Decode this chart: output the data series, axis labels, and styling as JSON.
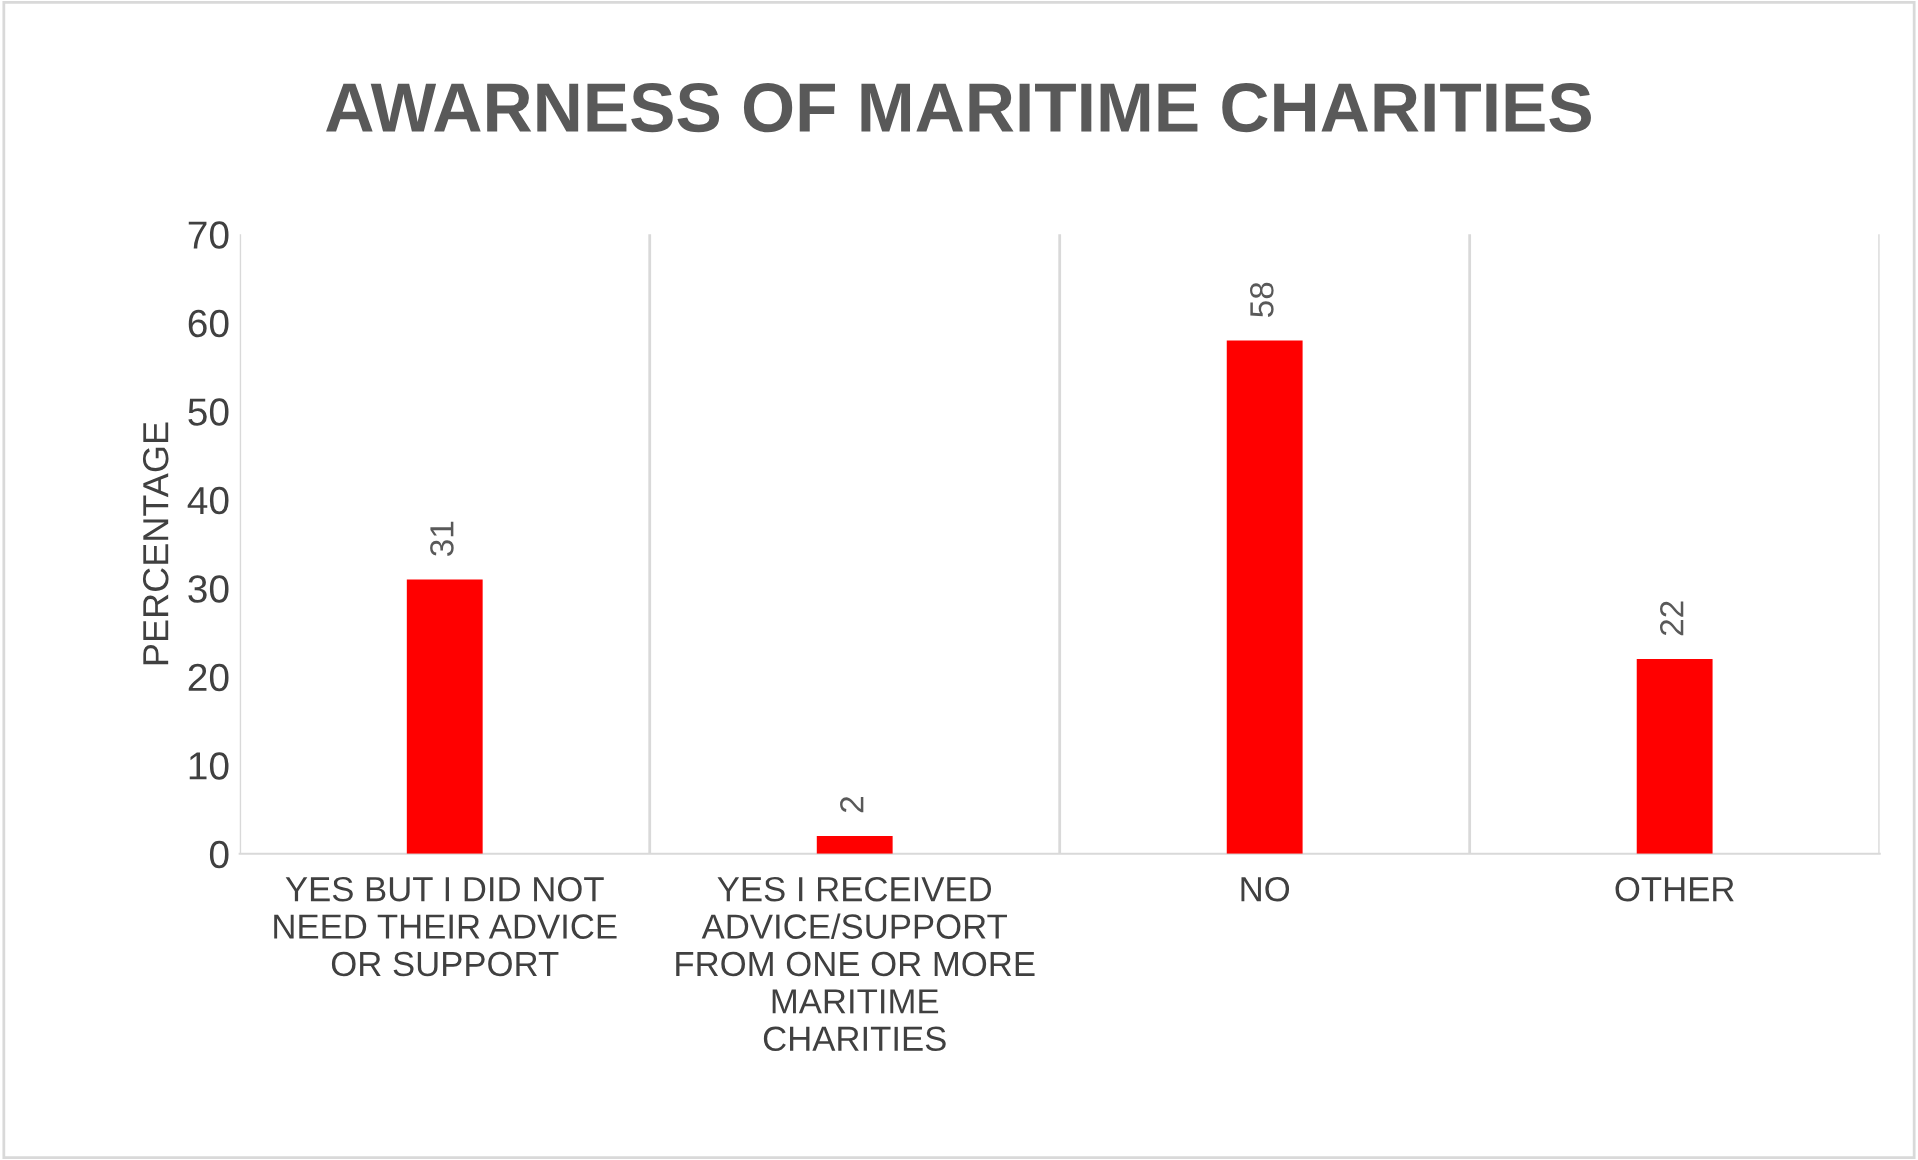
{
  "chart_data": {
    "type": "bar",
    "title": "AWARNESS OF MARITIME CHARITIES",
    "ylabel": "PERCENTAGE",
    "categories": [
      "YES BUT I DID NOT NEED THEIR ADVICE OR SUPPORT",
      "YES I RECEIVED ADVICE/SUPPORT FROM ONE OR MORE MARITIME CHARITIES",
      "NO",
      "OTHER"
    ],
    "values": [
      31,
      2,
      58,
      22
    ],
    "color": "#ff0000",
    "ylim": [
      0,
      70
    ],
    "yticks": [
      0,
      10,
      20,
      30,
      40,
      50,
      60,
      70
    ],
    "grid": "x",
    "data_labels": true
  }
}
